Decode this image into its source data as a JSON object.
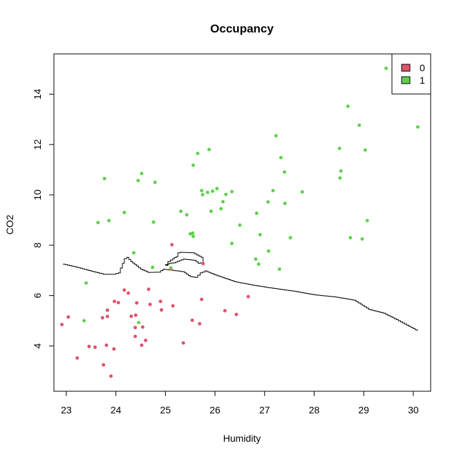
{
  "chart_data": {
    "type": "scatter",
    "title": "Occupancy",
    "xlabel": "Humidity",
    "ylabel": "CO2",
    "xlim": [
      22.75,
      30.35
    ],
    "ylim": [
      2.2,
      15.6
    ],
    "x_ticks": [
      23,
      24,
      25,
      26,
      27,
      28,
      29,
      30
    ],
    "y_ticks": [
      4,
      6,
      8,
      10,
      12,
      14
    ],
    "legend_position": "top-right",
    "grid": false,
    "series": [
      {
        "name": "0",
        "color": "#DF536B",
        "points": [
          [
            22.91,
            4.85
          ],
          [
            23.04,
            5.15
          ],
          [
            23.22,
            3.52
          ],
          [
            23.46,
            3.98
          ],
          [
            23.58,
            3.95
          ],
          [
            23.73,
            5.12
          ],
          [
            23.75,
            3.25
          ],
          [
            23.81,
            4.03
          ],
          [
            23.83,
            5.42
          ],
          [
            23.83,
            5.17
          ],
          [
            23.9,
            2.8
          ],
          [
            23.96,
            3.88
          ],
          [
            23.97,
            5.77
          ],
          [
            24.05,
            5.72
          ],
          [
            24.17,
            6.22
          ],
          [
            24.25,
            6.1
          ],
          [
            24.31,
            5.18
          ],
          [
            24.39,
            4.73
          ],
          [
            24.39,
            4.38
          ],
          [
            24.4,
            5.22
          ],
          [
            24.42,
            5.71
          ],
          [
            24.52,
            4.03
          ],
          [
            24.54,
            4.75
          ],
          [
            24.6,
            4.22
          ],
          [
            24.66,
            6.25
          ],
          [
            24.69,
            5.65
          ],
          [
            24.9,
            5.77
          ],
          [
            24.92,
            5.43
          ],
          [
            25.11,
            7.05
          ],
          [
            25.13,
            8.02
          ],
          [
            25.15,
            5.59
          ],
          [
            25.36,
            4.12
          ],
          [
            25.54,
            5.02
          ],
          [
            25.69,
            4.88
          ],
          [
            25.73,
            5.85
          ],
          [
            25.76,
            7.27
          ],
          [
            26.2,
            5.4
          ],
          [
            26.43,
            5.25
          ],
          [
            26.67,
            5.96
          ]
        ]
      },
      {
        "name": "1",
        "color": "#61D04F",
        "points": [
          [
            23.36,
            5.0
          ],
          [
            23.4,
            6.5
          ],
          [
            23.64,
            8.9
          ],
          [
            23.77,
            10.65
          ],
          [
            23.86,
            8.98
          ],
          [
            24.17,
            9.3
          ],
          [
            24.36,
            7.7
          ],
          [
            24.45,
            10.57
          ],
          [
            24.46,
            4.93
          ],
          [
            24.52,
            10.85
          ],
          [
            24.74,
            7.12
          ],
          [
            24.76,
            8.92
          ],
          [
            24.79,
            10.5
          ],
          [
            25.11,
            7.1
          ],
          [
            25.31,
            9.35
          ],
          [
            25.43,
            9.21
          ],
          [
            25.5,
            8.45
          ],
          [
            25.55,
            8.48
          ],
          [
            25.56,
            8.35
          ],
          [
            25.56,
            11.18
          ],
          [
            25.65,
            11.65
          ],
          [
            25.73,
            10.17
          ],
          [
            25.75,
            10.01
          ],
          [
            25.85,
            10.1
          ],
          [
            25.88,
            11.8
          ],
          [
            25.92,
            9.35
          ],
          [
            25.95,
            10.15
          ],
          [
            26.04,
            10.25
          ],
          [
            26.12,
            9.45
          ],
          [
            26.16,
            9.73
          ],
          [
            26.22,
            10.02
          ],
          [
            26.34,
            10.13
          ],
          [
            26.34,
            8.07
          ],
          [
            26.5,
            8.8
          ],
          [
            26.82,
            7.45
          ],
          [
            26.84,
            9.27
          ],
          [
            26.88,
            7.25
          ],
          [
            26.91,
            8.42
          ],
          [
            27.07,
            9.72
          ],
          [
            27.08,
            7.77
          ],
          [
            27.17,
            10.17
          ],
          [
            27.23,
            12.35
          ],
          [
            27.3,
            7.05
          ],
          [
            27.33,
            11.48
          ],
          [
            27.4,
            10.91
          ],
          [
            27.41,
            9.66
          ],
          [
            27.52,
            8.3
          ],
          [
            27.76,
            10.12
          ],
          [
            28.51,
            11.85
          ],
          [
            28.52,
            10.67
          ],
          [
            28.54,
            10.95
          ],
          [
            28.68,
            13.52
          ],
          [
            28.73,
            8.3
          ],
          [
            28.91,
            12.77
          ],
          [
            28.97,
            8.25
          ],
          [
            29.03,
            11.78
          ],
          [
            29.07,
            8.98
          ],
          [
            29.45,
            15.03
          ],
          [
            30.09,
            12.7
          ]
        ]
      }
    ],
    "boundary": {
      "color": "#000000",
      "main": [
        [
          22.93,
          7.25
        ],
        [
          23.2,
          7.13
        ],
        [
          23.5,
          6.97
        ],
        [
          23.75,
          6.85
        ],
        [
          23.95,
          6.85
        ],
        [
          24.05,
          6.9
        ],
        [
          24.17,
          7.47
        ],
        [
          24.22,
          7.52
        ],
        [
          24.3,
          7.35
        ],
        [
          24.5,
          7.05
        ],
        [
          24.65,
          6.92
        ],
        [
          24.85,
          6.93
        ],
        [
          24.95,
          7.05
        ],
        [
          25.15,
          7.0
        ],
        [
          25.35,
          6.95
        ],
        [
          25.5,
          6.75
        ],
        [
          25.6,
          6.72
        ],
        [
          25.7,
          6.9
        ],
        [
          25.8,
          6.98
        ],
        [
          26.0,
          6.82
        ],
        [
          26.4,
          6.55
        ],
        [
          26.8,
          6.4
        ],
        [
          27.2,
          6.28
        ],
        [
          27.6,
          6.17
        ],
        [
          28.0,
          6.03
        ],
        [
          28.4,
          5.95
        ],
        [
          28.8,
          5.82
        ],
        [
          29.1,
          5.45
        ],
        [
          29.4,
          5.3
        ],
        [
          29.7,
          5.0
        ],
        [
          30.08,
          4.6
        ]
      ],
      "islands": [
        [
          [
            25.0,
            7.2
          ],
          [
            25.05,
            7.35
          ],
          [
            25.15,
            7.48
          ],
          [
            25.22,
            7.55
          ],
          [
            25.25,
            7.7
          ],
          [
            25.3,
            7.72
          ],
          [
            25.55,
            7.7
          ],
          [
            25.72,
            7.52
          ],
          [
            25.76,
            7.3
          ],
          [
            25.7,
            7.28
          ],
          [
            25.62,
            7.4
          ],
          [
            25.4,
            7.45
          ],
          [
            25.2,
            7.3
          ],
          [
            25.12,
            7.28
          ],
          [
            25.0,
            7.2
          ]
        ]
      ]
    }
  }
}
